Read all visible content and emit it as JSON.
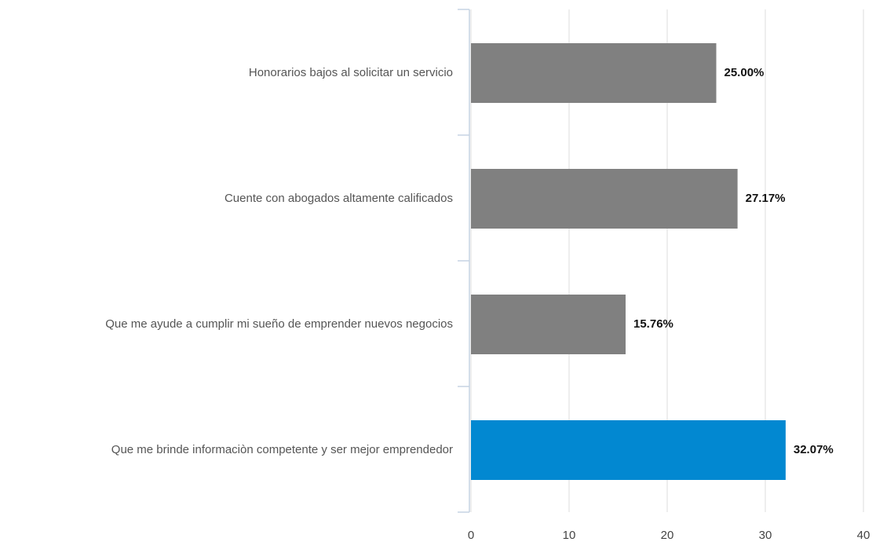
{
  "chart_data": {
    "type": "hbar",
    "categories": [
      "Honorarios bajos al solicitar un servicio",
      "Cuente con abogados altamente calificados",
      "Que me ayude a cumplir mi sueño de emprender nuevos negocios",
      "Que me brinde informaciòn competente y ser mejor emprendedor"
    ],
    "values": [
      25,
      27.17,
      15.76,
      32.07
    ],
    "value_labels": [
      "25.00%",
      "27.17%",
      "15.76%",
      "32.07%"
    ],
    "colors": [
      "#808080",
      "#808080",
      "#808080",
      "#0288d1"
    ],
    "xlim": [
      0,
      40
    ],
    "xticks": [
      0,
      10,
      20,
      30,
      40
    ],
    "grid": true
  }
}
